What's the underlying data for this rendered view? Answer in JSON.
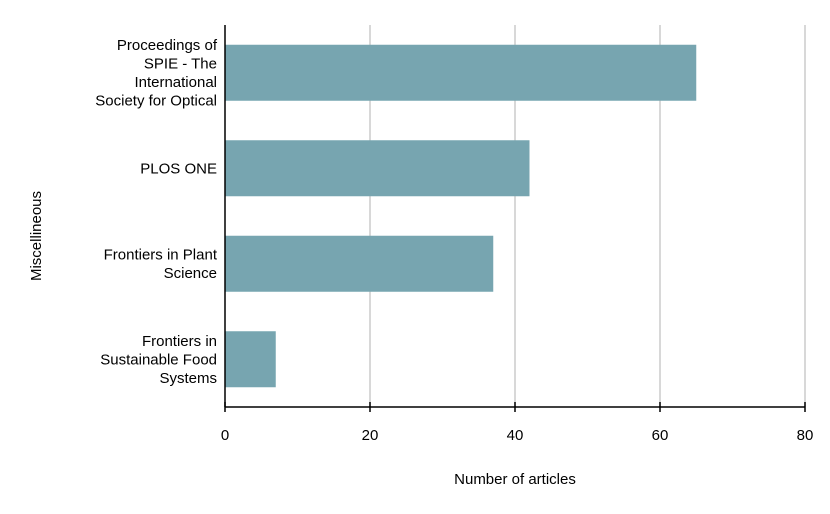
{
  "chart_data": {
    "type": "bar",
    "orientation": "horizontal",
    "categories": [
      [
        "Proceedings of",
        "SPIE - The",
        "International",
        "Society for Optical"
      ],
      [
        "PLOS ONE"
      ],
      [
        "Frontiers in Plant",
        "Science"
      ],
      [
        "Frontiers in",
        "Sustainable Food",
        "Systems"
      ]
    ],
    "values": [
      65,
      42,
      37,
      7
    ],
    "title": "",
    "xlabel": "Number of articles",
    "ylabel": "Miscellineous",
    "xlim": [
      0,
      80
    ],
    "xticks": [
      0,
      20,
      40,
      60,
      80
    ],
    "grid": "vertical",
    "bar_color": "#77a5b0",
    "grid_color": "#cccccc",
    "axis_color": "#000000"
  }
}
